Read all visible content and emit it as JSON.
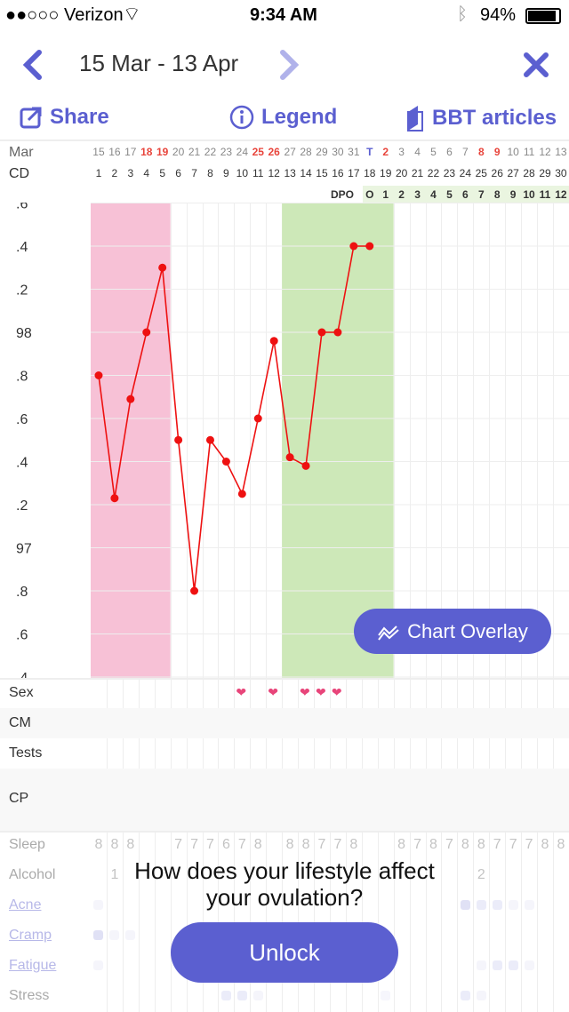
{
  "status": {
    "carrier": "●●○○○ Verizon",
    "time": "9:34 AM",
    "battery": "94%"
  },
  "nav": {
    "range": "15 Mar - 13 Apr"
  },
  "actions": {
    "share": "Share",
    "legend": "Legend",
    "articles": "BBT articles"
  },
  "colors": {
    "accent": "#5b5fd0",
    "period": "#f7c1d6",
    "fertile": "#cde8b8",
    "line": "#ee1111",
    "red_date": "#e8453c"
  },
  "rows": {
    "month": "Mar",
    "cd": "CD",
    "dpo": "DPO"
  },
  "dates": [
    "15",
    "16",
    "17",
    "18",
    "19",
    "20",
    "21",
    "22",
    "23",
    "24",
    "25",
    "26",
    "27",
    "28",
    "29",
    "30",
    "31",
    "T",
    "2",
    "3",
    "4",
    "5",
    "6",
    "7",
    "8",
    "9",
    "10",
    "11",
    "12",
    "13"
  ],
  "red_dates": [
    3,
    4,
    10,
    11,
    18,
    24,
    25
  ],
  "today_index": 17,
  "dpo": [
    "O",
    "1",
    "2",
    "3",
    "4",
    "5",
    "6",
    "7",
    "8",
    "9",
    "10",
    "11",
    "12"
  ],
  "y_labels": [
    ".6",
    ".4",
    ".2",
    "98",
    ".8",
    ".6",
    ".4",
    ".2",
    "97",
    ".8",
    ".6",
    ".4"
  ],
  "chart_data": {
    "type": "line",
    "x": [
      1,
      2,
      3,
      4,
      5,
      6,
      7,
      8,
      9,
      10,
      11,
      12,
      13,
      14,
      15,
      16,
      17,
      18
    ],
    "temps": [
      97.8,
      97.23,
      97.69,
      98.0,
      98.3,
      97.5,
      96.8,
      97.5,
      97.4,
      97.25,
      97.6,
      97.96,
      97.42,
      97.38,
      98.0,
      98.0,
      98.4,
      98.4
    ],
    "ylim": [
      96.4,
      98.6
    ],
    "period_days": [
      1,
      5
    ],
    "fertile_days": [
      13,
      19
    ]
  },
  "overlay": {
    "label": "Chart Overlay"
  },
  "labels": {
    "sex": "Sex",
    "cm": "CM",
    "tests": "Tests",
    "cp": "CP",
    "sleep": "Sleep",
    "alcohol": "Alcohol",
    "acne": "Acne",
    "cramp": "Cramp",
    "fatigue": "Fatigue",
    "stress": "Stress"
  },
  "sex_days": [
    10,
    12,
    14,
    15,
    16
  ],
  "sleep": [
    "8",
    "8",
    "8",
    "",
    "",
    "7",
    "7",
    "7",
    "6",
    "7",
    "8",
    "",
    "8",
    "8",
    "7",
    "7",
    "8",
    "",
    "",
    "8",
    "7",
    "8",
    "7",
    "8",
    "8",
    "7",
    "7",
    "7",
    "8",
    "8"
  ],
  "alcohol": {
    "2": "1",
    "25": "2"
  },
  "symptoms": {
    "acne": {
      "1": 1,
      "24": 3,
      "25": 2,
      "26": 2,
      "27": 1,
      "28": 1
    },
    "cramp": {
      "1": 3,
      "2": 1,
      "3": 1
    },
    "fatigue": {
      "1": 1,
      "25": 1,
      "26": 2,
      "27": 2,
      "28": 1
    },
    "stress": {
      "9": 2,
      "10": 2,
      "11": 1,
      "19": 1,
      "24": 2,
      "25": 1
    }
  },
  "promo": {
    "line1": "How does your lifestyle affect",
    "line2": "your ovulation?",
    "button": "Unlock"
  }
}
